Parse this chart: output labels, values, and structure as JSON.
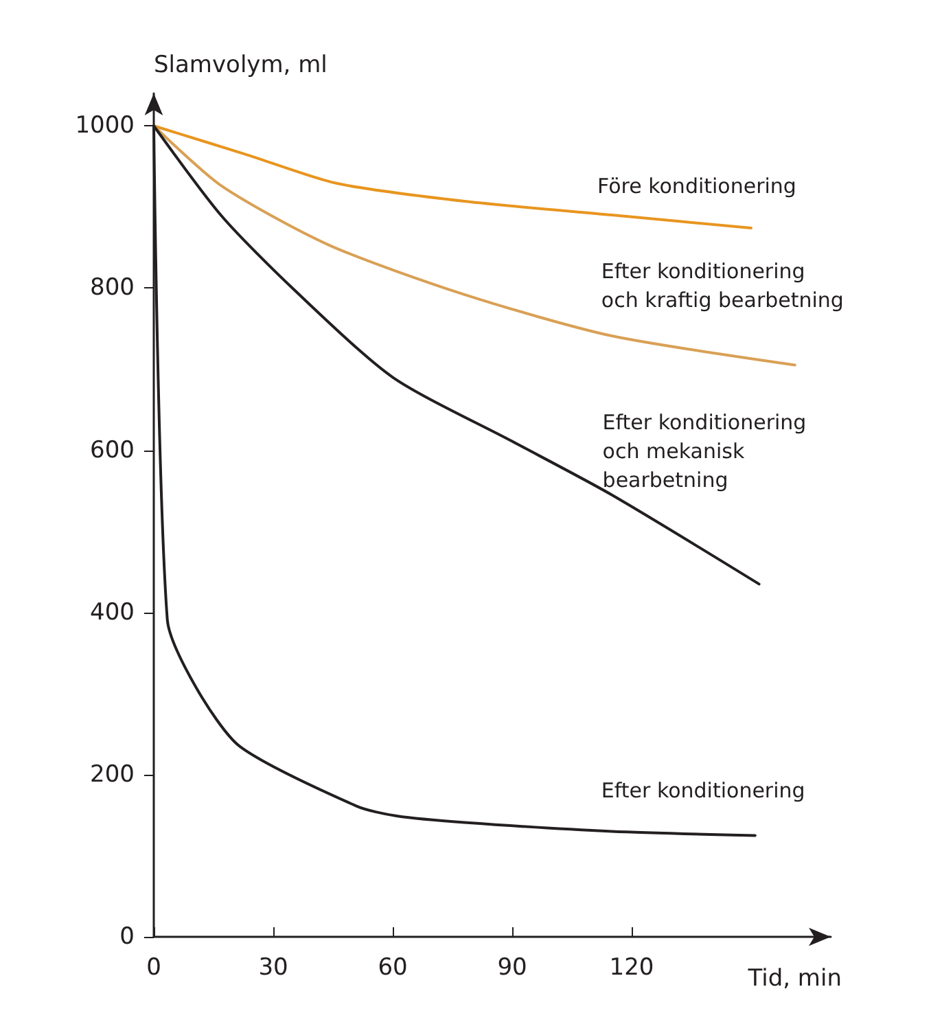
{
  "chart_data": {
    "type": "line",
    "xlabel": "Tid, min",
    "ylabel": "Slamvolym, ml",
    "xlim": [
      0,
      170
    ],
    "ylim": [
      0,
      1040
    ],
    "xticks": [
      0,
      30,
      60,
      90,
      120
    ],
    "yticks": [
      0,
      200,
      400,
      600,
      800,
      1000
    ],
    "grid": false,
    "marker": "none",
    "line_style": "solid",
    "series": [
      {
        "name": "Före konditionering",
        "color": "#e8951f",
        "x": [
          0,
          23,
          46,
          78,
          115,
          150
        ],
        "values": [
          1000,
          965,
          929,
          907,
          890,
          874
        ]
      },
      {
        "name": "Efter konditionering\noch kraftig bearbetning",
        "color": "#d9a055",
        "x": [
          0,
          17,
          44,
          78,
          115,
          161
        ],
        "values": [
          1000,
          926,
          853,
          792,
          741,
          705
        ]
      },
      {
        "name": "Efter konditionering\noch mekanisk\nbearbetning",
        "color": "#231f20",
        "x": [
          0,
          17,
          35,
          60,
          90,
          115,
          152
        ],
        "values": [
          1000,
          889,
          799,
          690,
          611,
          545,
          435
        ]
      },
      {
        "name": "Efter konditionering",
        "color": "#231f20",
        "x": [
          0,
          3.4,
          10.8,
          21.8,
          51,
          61,
          78,
          115,
          151
        ],
        "values": [
          1000,
          391,
          306,
          234,
          161,
          149,
          141,
          130,
          125
        ]
      }
    ]
  }
}
